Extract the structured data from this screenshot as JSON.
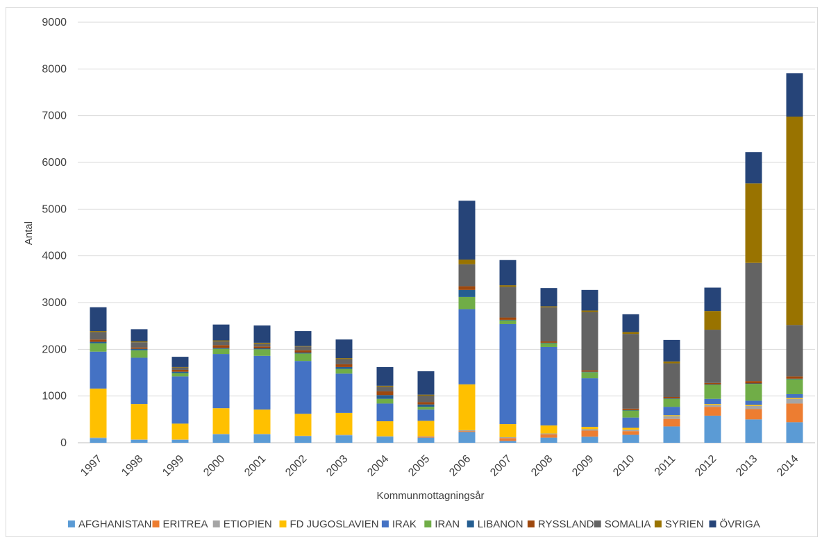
{
  "chart_data": {
    "type": "bar",
    "stacked": true,
    "title": "",
    "xlabel": "Kommunmottagningsår",
    "ylabel": "Antal",
    "ylim": [
      0,
      9000
    ],
    "yticks": [
      0,
      1000,
      2000,
      3000,
      4000,
      5000,
      6000,
      7000,
      8000,
      9000
    ],
    "grid": true,
    "legend_position": "bottom",
    "categories": [
      "1997",
      "1998",
      "1999",
      "2000",
      "2001",
      "2002",
      "2003",
      "2004",
      "2005",
      "2006",
      "2007",
      "2008",
      "2009",
      "2010",
      "2011",
      "2012",
      "2013",
      "2014"
    ],
    "series": [
      {
        "name": "AFGHANISTAN",
        "color": "#5B9BD5",
        "values": [
          100,
          60,
          60,
          180,
          180,
          140,
          160,
          130,
          110,
          230,
          40,
          110,
          130,
          170,
          350,
          580,
          500,
          440
        ]
      },
      {
        "name": "ERITREA",
        "color": "#ED7D31",
        "values": [
          0,
          0,
          0,
          0,
          0,
          0,
          0,
          0,
          20,
          20,
          60,
          70,
          130,
          80,
          160,
          190,
          220,
          400
        ]
      },
      {
        "name": "ETIOPIEN",
        "color": "#A5A5A5",
        "values": [
          10,
          10,
          10,
          10,
          10,
          10,
          10,
          10,
          10,
          20,
          20,
          20,
          30,
          30,
          60,
          40,
          70,
          100
        ]
      },
      {
        "name": "FD JUGOSLAVIEN",
        "color": "#FFC000",
        "values": [
          1050,
          760,
          340,
          550,
          520,
          470,
          470,
          320,
          330,
          980,
          280,
          170,
          50,
          40,
          20,
          20,
          20,
          20
        ]
      },
      {
        "name": "IRAK",
        "color": "#4472C4",
        "values": [
          790,
          990,
          1010,
          1160,
          1150,
          1130,
          840,
          380,
          240,
          1610,
          2140,
          1680,
          1040,
          220,
          180,
          110,
          90,
          80
        ]
      },
      {
        "name": "IRAN",
        "color": "#70AD47",
        "values": [
          180,
          160,
          70,
          110,
          140,
          160,
          100,
          100,
          60,
          260,
          80,
          80,
          130,
          150,
          170,
          300,
          360,
          320
        ]
      },
      {
        "name": "LIBANON",
        "color": "#255E91",
        "values": [
          30,
          30,
          30,
          20,
          20,
          20,
          40,
          80,
          50,
          150,
          10,
          10,
          10,
          10,
          10,
          10,
          10,
          10
        ]
      },
      {
        "name": "RYSSLAND",
        "color": "#9E480E",
        "values": [
          50,
          30,
          40,
          60,
          40,
          50,
          60,
          80,
          50,
          80,
          50,
          30,
          30,
          30,
          30,
          30,
          50,
          50
        ]
      },
      {
        "name": "SOMALIA",
        "color": "#636363",
        "values": [
          160,
          110,
          50,
          80,
          60,
          80,
          110,
          100,
          140,
          470,
          660,
          730,
          1250,
          1600,
          720,
          1140,
          2530,
          1100
        ]
      },
      {
        "name": "SYRIEN",
        "color": "#997300",
        "values": [
          20,
          20,
          10,
          20,
          20,
          10,
          20,
          20,
          20,
          100,
          30,
          20,
          30,
          40,
          40,
          400,
          1700,
          4460
        ]
      },
      {
        "name": "ÖVRIGA",
        "color": "#264478",
        "values": [
          510,
          260,
          220,
          340,
          370,
          320,
          400,
          400,
          500,
          1260,
          540,
          390,
          440,
          380,
          460,
          500,
          670,
          930
        ]
      }
    ]
  }
}
